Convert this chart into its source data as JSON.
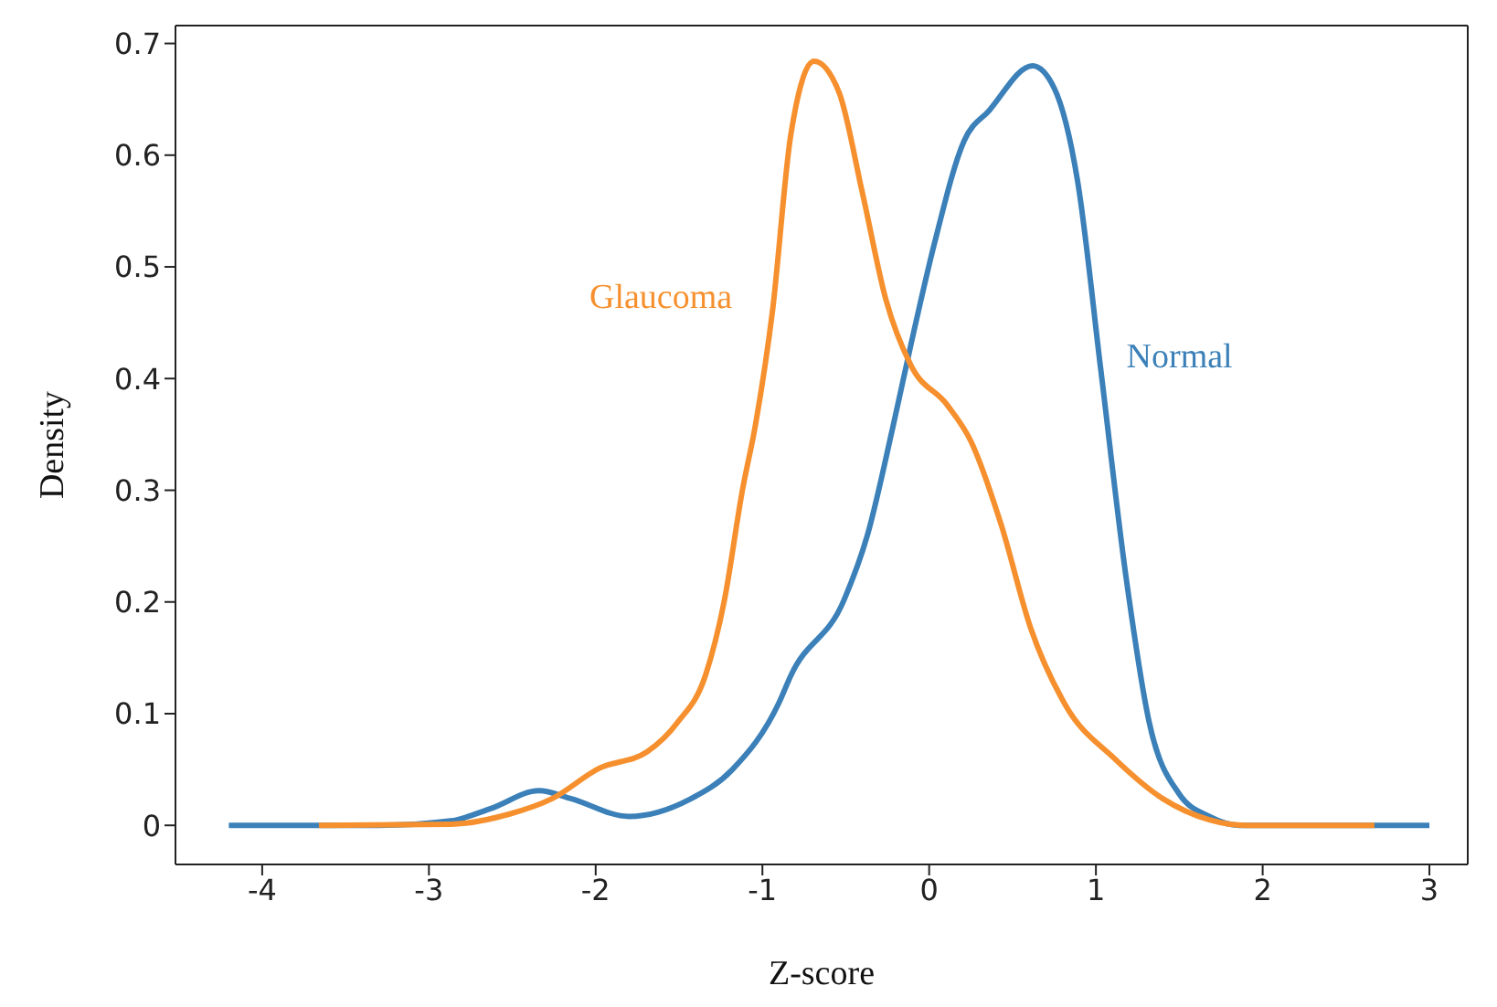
{
  "chart_data": {
    "type": "line",
    "xlabel": "Z-score",
    "ylabel": "Density",
    "xlim": [
      -4.52,
      3.23
    ],
    "ylim": [
      -0.035,
      0.716
    ],
    "xticks": [
      -4,
      -3,
      -2,
      -1,
      0,
      1,
      2,
      3
    ],
    "yticks": [
      0.0,
      0.1,
      0.2,
      0.3,
      0.4,
      0.5,
      0.6,
      0.7
    ],
    "grid": false,
    "legend": false,
    "marker": "none",
    "line_style": "solid",
    "series": [
      {
        "name": "Normal",
        "color": "#3b80b8",
        "x": [
          -4.2,
          -3.3,
          -2.87,
          -2.63,
          -2.34,
          -2.15,
          -1.8,
          -1.44,
          -1.18,
          -0.9,
          -0.83,
          -0.51,
          -0.37,
          -0.22,
          -0.11,
          0.03,
          0.21,
          0.36,
          0.62,
          0.75,
          0.89,
          1.03,
          1.18,
          1.32,
          1.5,
          1.68,
          1.86,
          2.3,
          3.0
        ],
        "values": [
          0,
          0,
          0.004,
          0.015,
          0.031,
          0.024,
          0.008,
          0.023,
          0.05,
          0.11,
          0.134,
          0.202,
          0.26,
          0.355,
          0.43,
          0.52,
          0.613,
          0.64,
          0.68,
          0.66,
          0.577,
          0.407,
          0.223,
          0.092,
          0.028,
          0.008,
          0,
          0,
          0
        ]
      },
      {
        "name": "Glaucoma",
        "color": "#f6902e",
        "x": [
          -3.66,
          -2.87,
          -2.52,
          -2.26,
          -1.98,
          -1.69,
          -1.51,
          -1.34,
          -1.23,
          -1.12,
          -1.04,
          -0.94,
          -0.83,
          -0.69,
          -0.54,
          -0.4,
          -0.26,
          -0.11,
          0.11,
          0.25,
          0.43,
          0.61,
          0.82,
          1.11,
          1.4,
          1.68,
          1.9,
          2.67
        ],
        "values": [
          0,
          0.001,
          0.01,
          0.024,
          0.051,
          0.066,
          0.092,
          0.135,
          0.2,
          0.3,
          0.36,
          0.46,
          0.618,
          0.684,
          0.656,
          0.566,
          0.471,
          0.412,
          0.376,
          0.344,
          0.27,
          0.176,
          0.107,
          0.06,
          0.024,
          0.005,
          0,
          0
        ]
      }
    ]
  }
}
